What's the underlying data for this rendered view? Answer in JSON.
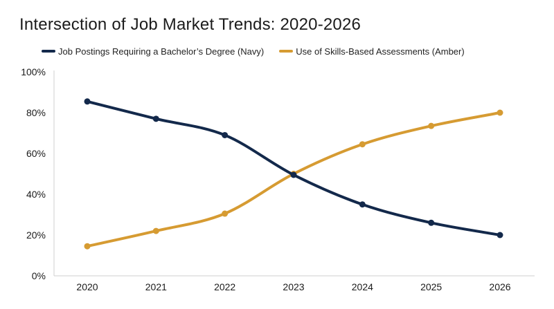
{
  "chart_data": {
    "type": "line",
    "title": "Intersection of Job Market Trends: 2020-2026",
    "xlabel": "",
    "ylabel": "",
    "x": [
      "2020",
      "2021",
      "2022",
      "2023",
      "2024",
      "2025",
      "2026"
    ],
    "y_ticks": [
      "0%",
      "20%",
      "40%",
      "60%",
      "80%",
      "100%"
    ],
    "ylim": [
      0,
      100
    ],
    "grid": false,
    "legend_position": "top",
    "series": [
      {
        "name": "Job Postings Requiring a Bachelor’s Degree (Navy)",
        "color": "#13294b",
        "values": [
          85.5,
          77,
          69,
          49.5,
          35,
          26,
          20
        ]
      },
      {
        "name": "Use of Skills-Based Assessments (Amber)",
        "color": "#d69b32",
        "values": [
          14.5,
          22,
          30.5,
          50,
          64.5,
          73.5,
          80
        ]
      }
    ]
  }
}
